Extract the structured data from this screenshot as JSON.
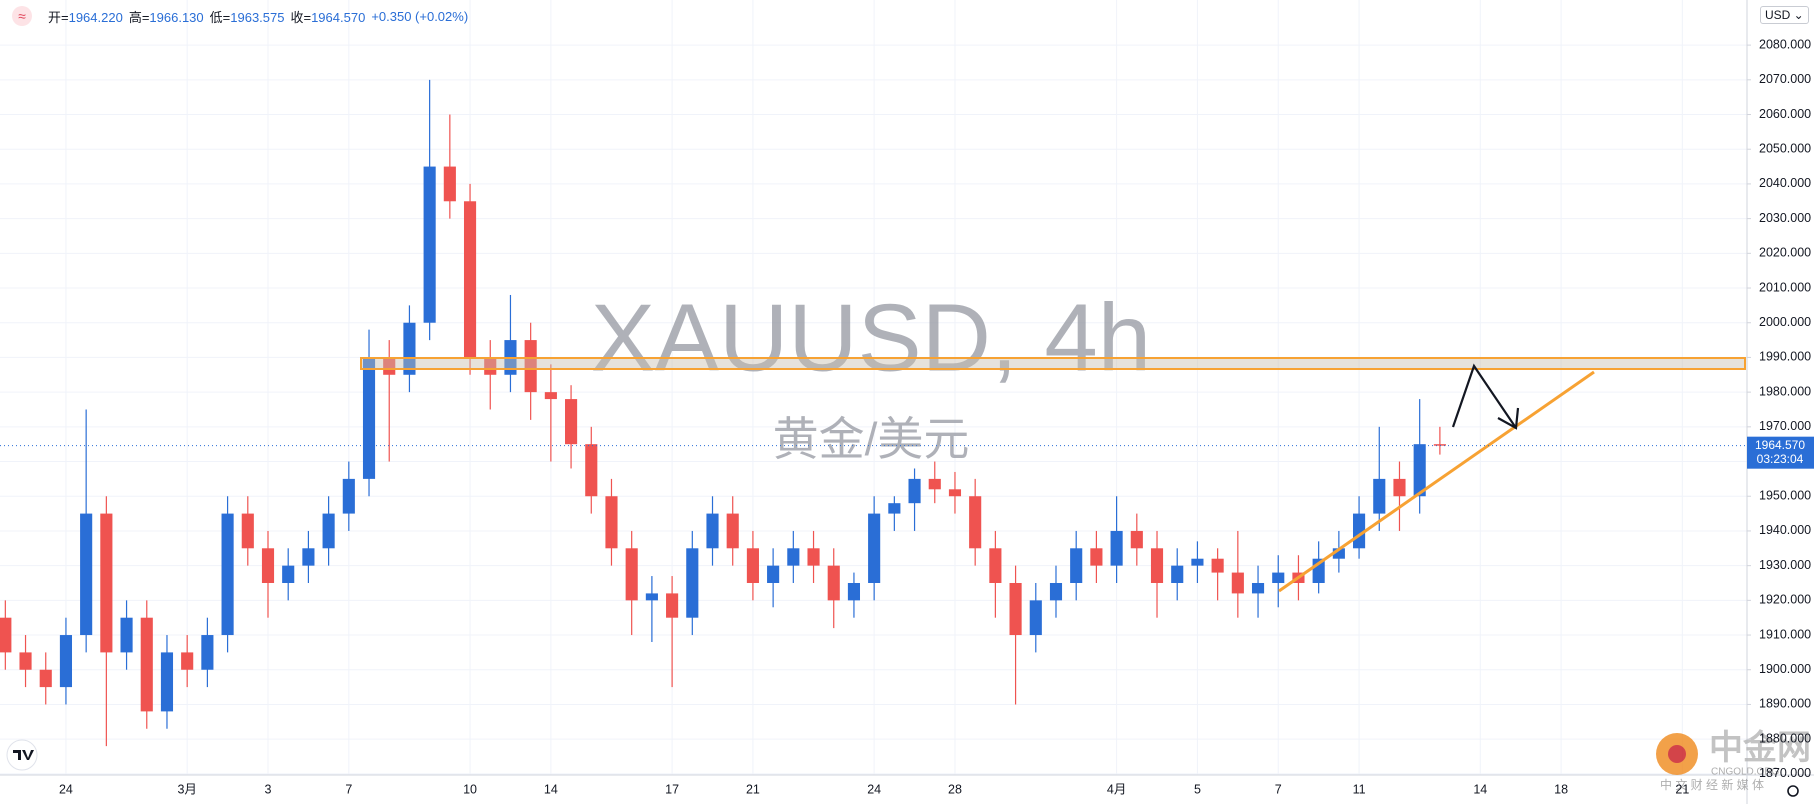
{
  "header": {
    "quote": [
      {
        "key": "开=",
        "value": "1964.220"
      },
      {
        "key": "高=",
        "value": "1966.130"
      },
      {
        "key": "低=",
        "value": "1963.575"
      },
      {
        "key": "收=",
        "value": "1964.570"
      }
    ],
    "change": "+0.350 (+0.02%)"
  },
  "currency_button": "USD",
  "price_tag": {
    "price": "1964.570",
    "countdown": "03:23:04"
  },
  "branding": {
    "name": "中金网",
    "domain": "CNGOLD.ORG",
    "tagline": "中 文 财 经 新 媒 体"
  },
  "chart_data": {
    "type": "candlestick",
    "watermark_symbol": "XAUUSD, 4h",
    "watermark_name": "黄金/美元",
    "up_color": "#2a6ed6",
    "down_color": "#ef5350",
    "grid": true,
    "x": [
      -1.5,
      -1,
      -0.5,
      0,
      0.5,
      1,
      1.5,
      2,
      2.5,
      3,
      3.5,
      4,
      4.5,
      5,
      5.5,
      6,
      6.5,
      7,
      7.5,
      8,
      8.5,
      9,
      9.5,
      10,
      10.5,
      11,
      11.5,
      12,
      12.5,
      13,
      13.5,
      14,
      14.5,
      15,
      15.5,
      16,
      16.5,
      17,
      17.5,
      18,
      18.5,
      19,
      19.5,
      20,
      20.5,
      21,
      21.5,
      22,
      22.5,
      23,
      23.5,
      24,
      24.5,
      25,
      25.5,
      26,
      26.5,
      27,
      27.5,
      28,
      28.5,
      29,
      29.5,
      30,
      30.5,
      31,
      31.5,
      32,
      32.5,
      33,
      33.5,
      34
    ],
    "open": [
      1915,
      1905,
      1900,
      1895,
      1910,
      1945,
      1905,
      1915,
      1888,
      1905,
      1900,
      1910,
      1945,
      1935,
      1925,
      1930,
      1935,
      1945,
      1955,
      1990,
      1985,
      2000,
      2045,
      2035,
      1990,
      1985,
      1995,
      1980,
      1978,
      1965,
      1950,
      1935,
      1920,
      1922,
      1915,
      1935,
      1945,
      1935,
      1925,
      1930,
      1935,
      1930,
      1920,
      1925,
      1945,
      1948,
      1955,
      1952,
      1950,
      1935,
      1925,
      1910,
      1920,
      1925,
      1935,
      1930,
      1940,
      1935,
      1925,
      1930,
      1932,
      1928,
      1922,
      1925,
      1928,
      1925,
      1932,
      1935,
      1945,
      1955,
      1950,
      1965
    ],
    "high": [
      1920,
      1910,
      1905,
      1915,
      1975,
      1950,
      1920,
      1920,
      1910,
      1910,
      1915,
      1950,
      1950,
      1940,
      1935,
      1940,
      1950,
      1960,
      1998,
      1995,
      2005,
      2070,
      2060,
      2040,
      1995,
      2008,
      2000,
      1988,
      1982,
      1970,
      1955,
      1940,
      1927,
      1927,
      1940,
      1950,
      1950,
      1940,
      1935,
      1940,
      1940,
      1935,
      1928,
      1950,
      1950,
      1958,
      1960,
      1957,
      1955,
      1940,
      1930,
      1925,
      1930,
      1940,
      1940,
      1950,
      1945,
      1940,
      1935,
      1937,
      1935,
      1940,
      1930,
      1933,
      1933,
      1937,
      1940,
      1950,
      1970,
      1960,
      1978,
      1970
    ],
    "low": [
      1900,
      1895,
      1890,
      1890,
      1905,
      1878,
      1900,
      1883,
      1883,
      1895,
      1895,
      1905,
      1930,
      1915,
      1920,
      1925,
      1930,
      1940,
      1950,
      1960,
      1980,
      1995,
      2030,
      1985,
      1975,
      1980,
      1972,
      1960,
      1958,
      1945,
      1930,
      1910,
      1908,
      1895,
      1910,
      1930,
      1930,
      1920,
      1918,
      1925,
      1925,
      1912,
      1915,
      1920,
      1940,
      1940,
      1948,
      1945,
      1930,
      1915,
      1890,
      1905,
      1915,
      1920,
      1925,
      1925,
      1930,
      1915,
      1920,
      1925,
      1920,
      1915,
      1915,
      1918,
      1920,
      1922,
      1928,
      1932,
      1940,
      1940,
      1945,
      1962
    ],
    "close": [
      1905,
      1900,
      1895,
      1910,
      1945,
      1905,
      1915,
      1888,
      1905,
      1900,
      1910,
      1945,
      1935,
      1925,
      1930,
      1935,
      1945,
      1955,
      1990,
      1985,
      2000,
      2045,
      2035,
      1990,
      1985,
      1995,
      1980,
      1978,
      1965,
      1950,
      1935,
      1920,
      1922,
      1915,
      1935,
      1945,
      1935,
      1925,
      1930,
      1935,
      1930,
      1920,
      1925,
      1945,
      1948,
      1955,
      1952,
      1950,
      1935,
      1925,
      1910,
      1920,
      1925,
      1935,
      1930,
      1940,
      1935,
      1925,
      1930,
      1932,
      1928,
      1922,
      1925,
      1928,
      1925,
      1932,
      1935,
      1945,
      1955,
      1950,
      1965,
      1964.57
    ],
    "xlim": [
      -1.632,
      41.6
    ],
    "xticks": [
      {
        "value": 0,
        "label": "24"
      },
      {
        "value": 3,
        "label": "3月"
      },
      {
        "value": 5,
        "label": "3"
      },
      {
        "value": 7,
        "label": "7"
      },
      {
        "value": 10,
        "label": "10"
      },
      {
        "value": 12,
        "label": "14"
      },
      {
        "value": 15,
        "label": "17"
      },
      {
        "value": 17,
        "label": "21"
      },
      {
        "value": 20,
        "label": "24"
      },
      {
        "value": 22,
        "label": "28"
      },
      {
        "value": 26,
        "label": "4月"
      },
      {
        "value": 28,
        "label": "5"
      },
      {
        "value": 30,
        "label": "7"
      },
      {
        "value": 32,
        "label": "11"
      },
      {
        "value": 35,
        "label": "14"
      },
      {
        "value": 37,
        "label": "18"
      },
      {
        "value": 40,
        "label": "21"
      }
    ],
    "ylim": [
      1869.67,
      2093
    ],
    "yticks": [
      {
        "value": 1870,
        "label": "1870.000"
      },
      {
        "value": 1880,
        "label": "1880.000"
      },
      {
        "value": 1890,
        "label": "1890.000"
      },
      {
        "value": 1900,
        "label": "1900.000"
      },
      {
        "value": 1910,
        "label": "1910.000"
      },
      {
        "value": 1920,
        "label": "1920.000"
      },
      {
        "value": 1930,
        "label": "1930.000"
      },
      {
        "value": 1940,
        "label": "1940.000"
      },
      {
        "value": 1950,
        "label": "1950.000"
      },
      {
        "value": 1960,
        "label": "1960.000"
      },
      {
        "value": 1970,
        "label": "1970.000"
      },
      {
        "value": 1980,
        "label": "1980.000"
      },
      {
        "value": 1990,
        "label": "1990.000"
      },
      {
        "value": 2000,
        "label": "2000.000"
      },
      {
        "value": 2010,
        "label": "2010.000"
      },
      {
        "value": 2020,
        "label": "2020.000"
      },
      {
        "value": 2030,
        "label": "2030.000"
      },
      {
        "value": 2040,
        "label": "2040.000"
      },
      {
        "value": 2050,
        "label": "2050.000"
      },
      {
        "value": 2060,
        "label": "2060.000"
      },
      {
        "value": 2070,
        "label": "2070.000"
      },
      {
        "value": 2080,
        "label": "2080.000"
      }
    ]
  }
}
